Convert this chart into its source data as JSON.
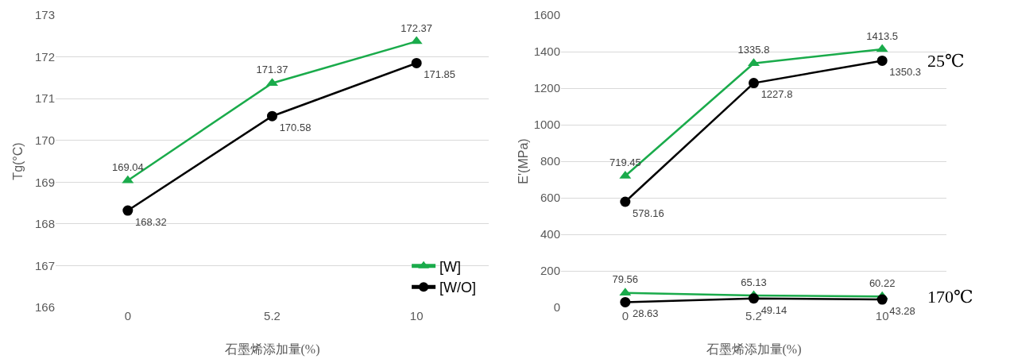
{
  "chart_data": [
    {
      "type": "line",
      "ylabel": "Tg(°C)",
      "xlabel": "石墨烯添加量(%)",
      "categories": [
        "0",
        "5.2",
        "10"
      ],
      "ylim": [
        166,
        173
      ],
      "yticks": [
        166,
        167,
        168,
        169,
        170,
        171,
        172,
        173
      ],
      "grid": "y",
      "legend": "bottom right",
      "data_labels": true,
      "series": [
        {
          "name": "[W]",
          "color": "#1aab4b",
          "marker": "triangle",
          "values": [
            169.04,
            171.37,
            172.37
          ]
        },
        {
          "name": "[W/O]",
          "color": "#000000",
          "marker": "circle",
          "values": [
            168.32,
            170.58,
            171.85
          ]
        }
      ]
    },
    {
      "type": "line",
      "ylabel": "E'(MPa)",
      "xlabel": "石墨烯添加量(%)",
      "categories": [
        "0",
        "5.2",
        "10"
      ],
      "ylim": [
        0,
        1600
      ],
      "yticks": [
        0,
        200,
        400,
        600,
        800,
        1000,
        1200,
        1400,
        1600
      ],
      "grid": "y",
      "legend": false,
      "data_labels": true,
      "annotations": [
        {
          "text": "25℃",
          "x": "10",
          "y": 1350.3
        },
        {
          "text": "170℃",
          "x": "10",
          "y": 60.22
        }
      ],
      "series": [
        {
          "color": "#1aab4b",
          "marker": "triangle",
          "values": [
            719.45,
            1335.8,
            1413.5
          ]
        },
        {
          "color": "#000000",
          "marker": "circle",
          "values": [
            578.16,
            1227.8,
            1350.3
          ]
        },
        {
          "color": "#1aab4b",
          "marker": "triangle",
          "values": [
            79.56,
            65.13,
            60.22
          ]
        },
        {
          "color": "#000000",
          "marker": "circle",
          "values": [
            28.63,
            49.14,
            43.28
          ]
        }
      ]
    }
  ]
}
